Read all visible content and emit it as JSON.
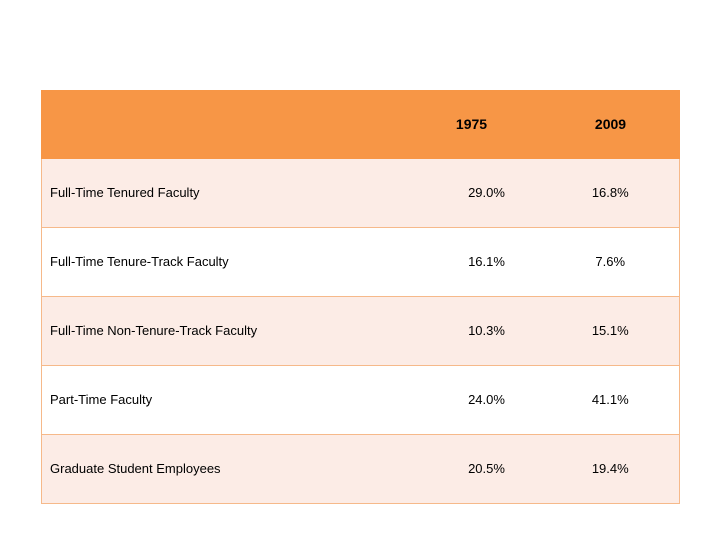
{
  "table": {
    "headers": [
      "",
      "1975",
      "2009"
    ],
    "rows": [
      {
        "label": "Full-Time Tenured Faculty",
        "y1975": "29.0%",
        "y2009": "16.8%"
      },
      {
        "label": "Full-Time Tenure-Track Faculty",
        "y1975": "16.1%",
        "y2009": "7.6%"
      },
      {
        "label": "Full-Time Non-Tenure-Track Faculty",
        "y1975": "10.3%",
        "y2009": "15.1%"
      },
      {
        "label": "Part-Time Faculty",
        "y1975": "24.0%",
        "y2009": "41.1%"
      },
      {
        "label": "Graduate Student Employees",
        "y1975": "20.5%",
        "y2009": "19.4%"
      }
    ]
  },
  "colors": {
    "header_bg": "#f79646",
    "row_shaded_bg": "#fcece6",
    "row_plain_bg": "#ffffff",
    "border": "#f6b98a"
  }
}
